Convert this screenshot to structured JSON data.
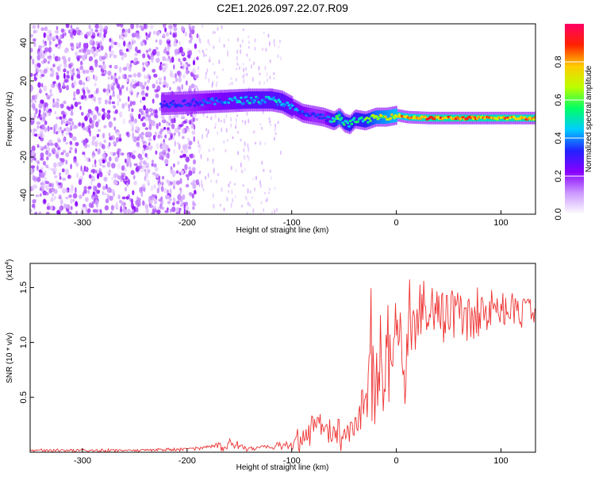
{
  "figure": {
    "title": "C2E1.2026.097.22.07.R09",
    "trace_color": "#ee3333"
  },
  "chart_data": [
    {
      "type": "heatmap",
      "xlabel": "Height of straight line (km)",
      "ylabel": "Frequency (Hz)",
      "xlim": [
        -350,
        133
      ],
      "ylim": [
        -50,
        50
      ],
      "x_ticks": [
        -300,
        -200,
        -100,
        0,
        100
      ],
      "y_ticks": [
        -40,
        -20,
        0,
        20,
        40
      ],
      "x_tick_labels": [
        "-300",
        "-200",
        "-100",
        "0",
        "100"
      ],
      "y_tick_labels": [
        "-40",
        "-20",
        "0",
        "20",
        "40"
      ],
      "grid": false,
      "colorbar": {
        "label": "Normalized spectral amplitude",
        "range": [
          0.0,
          1.0
        ],
        "ticks": [
          0.0,
          0.2,
          0.4,
          0.6,
          0.8
        ],
        "tick_labels": [
          "0.0",
          "0.2",
          "0.4",
          "0.6",
          "0.8"
        ],
        "colormap": [
          "#ffffff",
          "#cc99ff",
          "#8800ff",
          "#2222ff",
          "#00ccff",
          "#00ff66",
          "#bbff00",
          "#ffcc00",
          "#ff2200",
          "#ff0066"
        ]
      },
      "ridge": {
        "x": [
          -225,
          -200,
          -180,
          -160,
          -140,
          -120,
          -110,
          -100,
          -90,
          -80,
          -70,
          -60,
          -55,
          -50,
          -45,
          -40,
          -30,
          -20,
          -10,
          0,
          10,
          30,
          60,
          100,
          133
        ],
        "freq_hz": [
          8,
          8.5,
          9,
          9.5,
          10,
          10,
          9,
          6,
          3,
          2,
          1,
          -1,
          1,
          -2,
          -3,
          0,
          -1,
          1,
          1,
          2,
          1,
          0.5,
          0.5,
          0.5,
          0.5
        ],
        "amplitude": [
          0.35,
          0.35,
          0.4,
          0.45,
          0.5,
          0.5,
          0.5,
          0.45,
          0.4,
          0.35,
          0.35,
          0.55,
          0.7,
          0.55,
          0.6,
          0.55,
          0.6,
          0.7,
          0.75,
          0.8,
          0.85,
          0.9,
          0.9,
          0.9,
          0.9
        ]
      },
      "noise_region": {
        "x_start": -350,
        "x_end": -190,
        "amplitude": 0.2
      },
      "noise_sparse": {
        "x_start": -190,
        "x_end": -110,
        "amplitude": 0.08
      }
    },
    {
      "type": "line",
      "xlabel": "Height of straight line (km)",
      "ylabel": "SNR (10 * v/v)",
      "y_scale_label": "(x10",
      "y_scale_exponent": "4",
      "y_scale_close": ")",
      "xlim": [
        -350,
        133
      ],
      "ylim": [
        0,
        1.72
      ],
      "x_ticks": [
        -300,
        -200,
        -100,
        0,
        100
      ],
      "y_ticks": [
        0.5,
        1.0,
        1.5
      ],
      "x_tick_labels": [
        "-300",
        "-200",
        "-100",
        "0",
        "100"
      ],
      "y_tick_labels": [
        "0.5",
        "1.0",
        "1.5"
      ],
      "series": [
        {
          "x": [
            -350,
            -300,
            -250,
            -200,
            -180,
            -160,
            -150,
            -140,
            -120,
            -100,
            -85,
            -75,
            -65,
            -50,
            -40,
            -30,
            -25,
            -20,
            -15,
            -10,
            -5,
            0,
            5,
            10,
            15,
            20,
            25,
            30,
            40,
            50,
            60,
            70,
            80,
            90,
            100,
            110,
            120,
            133
          ],
          "values": [
            0.02,
            0.02,
            0.02,
            0.03,
            0.05,
            0.09,
            0.05,
            0.04,
            0.05,
            0.07,
            0.18,
            0.26,
            0.2,
            0.15,
            0.22,
            0.5,
            0.95,
            0.65,
            0.75,
            0.8,
            0.85,
            0.95,
            1.0,
            1.05,
            1.15,
            1.2,
            1.3,
            1.33,
            1.4,
            1.4,
            1.3,
            1.25,
            1.3,
            1.33,
            1.35,
            1.37,
            1.35,
            1.36
          ],
          "envelope_max": [
            0.03,
            0.03,
            0.03,
            0.04,
            0.06,
            0.15,
            0.09,
            0.06,
            0.08,
            0.1,
            0.4,
            0.45,
            0.3,
            0.3,
            0.45,
            1.0,
            1.55,
            1.2,
            1.25,
            1.3,
            1.4,
            1.35,
            1.5,
            1.72,
            1.45,
            1.5,
            1.55,
            1.6,
            1.6,
            1.55,
            1.55,
            1.5,
            1.5,
            1.48,
            1.45,
            1.45,
            1.43,
            1.42
          ],
          "envelope_min": [
            0.0,
            0.0,
            0.0,
            0.01,
            0.01,
            0.01,
            0.01,
            0.01,
            0.01,
            0.01,
            0.0,
            0.02,
            0.05,
            0.0,
            0.02,
            0.1,
            0.3,
            0.25,
            0.35,
            0.4,
            0.5,
            0.3,
            0.6,
            0.35,
            0.8,
            0.9,
            0.9,
            0.95,
            1.0,
            1.0,
            0.85,
            0.95,
            1.0,
            1.0,
            1.2,
            1.1,
            1.05,
            1.2
          ]
        }
      ]
    }
  ]
}
